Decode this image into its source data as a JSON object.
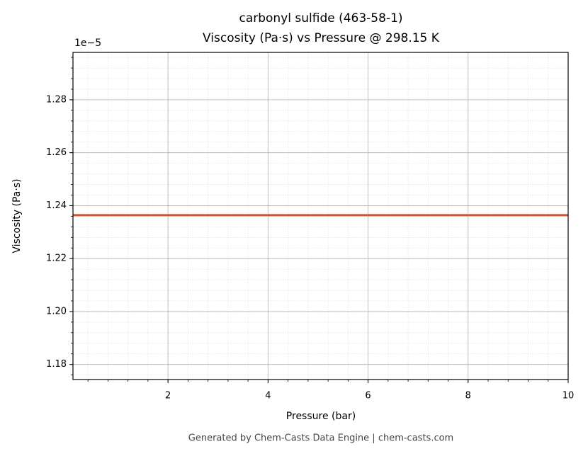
{
  "chart_data": {
    "type": "line",
    "title": "carbonyl sulfide (463-58-1)",
    "subtitle": "Viscosity (Pa·s) vs Pressure @ 298.15 K",
    "x_label": "Pressure (bar)",
    "y_label": "Viscosity (Pa·s)",
    "y_offset_label": "1e−5",
    "footer": "Generated by Chem-Casts Data Engine | chem-casts.com",
    "x": [
      0.1,
      2,
      4,
      6,
      8,
      10
    ],
    "series": [
      {
        "name": "Viscosity (Pa·s)",
        "color": "#c8552b",
        "values": [
          1.2364,
          1.2364,
          1.2364,
          1.2364,
          1.2364,
          1.2364
        ]
      }
    ],
    "xlim": [
      0.1,
      10
    ],
    "ylim": [
      1.1743,
      1.2979
    ],
    "xticks": [
      2,
      4,
      6,
      8,
      10
    ],
    "yticks": [
      1.18,
      {
        "value": 1.2,
        "label": "1.20"
      },
      1.22,
      1.24,
      1.26,
      1.28
    ],
    "grid": true,
    "minor_grid": true,
    "x_minor_divisions": 5,
    "y_minor_divisions": 5
  }
}
